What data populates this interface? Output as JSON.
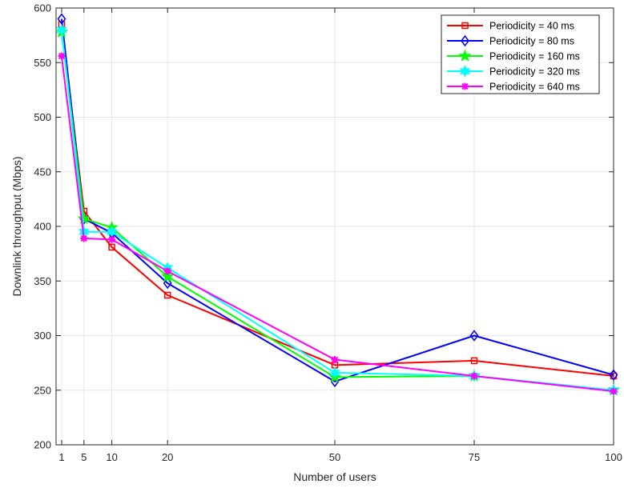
{
  "chart_data": {
    "type": "line",
    "xlabel": "Number of users",
    "ylabel": "Downlink throughput (Mbps)",
    "x": [
      1,
      5,
      10,
      20,
      50,
      75,
      100
    ],
    "xlim": [
      0,
      100
    ],
    "ylim": [
      200,
      600
    ],
    "xticks": [
      1,
      5,
      10,
      20,
      50,
      75,
      100
    ],
    "yticks": [
      200,
      250,
      300,
      350,
      400,
      450,
      500,
      550,
      600
    ],
    "grid": true,
    "legend_position": "top-right",
    "series": [
      {
        "name": "Periodicity = 40 ms",
        "color": "#ff0000",
        "marker": "square",
        "values": [
          585,
          414,
          381,
          337,
          273,
          277,
          263
        ]
      },
      {
        "name": "Periodicity = 80 ms",
        "color": "#0000ff",
        "marker": "diamond",
        "values": [
          590,
          407,
          394,
          348,
          258,
          300,
          264
        ]
      },
      {
        "name": "Periodicity = 160 ms",
        "color": "#00ff00",
        "marker": "star",
        "values": [
          578,
          407,
          399,
          354,
          262,
          263,
          250
        ]
      },
      {
        "name": "Periodicity = 320 ms",
        "color": "#00ffff",
        "marker": "hexagram",
        "values": [
          580,
          395,
          395,
          362,
          266,
          263,
          250
        ]
      },
      {
        "name": "Periodicity = 640 ms",
        "color": "#ff00ff",
        "marker": "asterisk",
        "values": [
          556,
          389,
          388,
          359,
          278,
          263,
          249
        ]
      }
    ]
  }
}
